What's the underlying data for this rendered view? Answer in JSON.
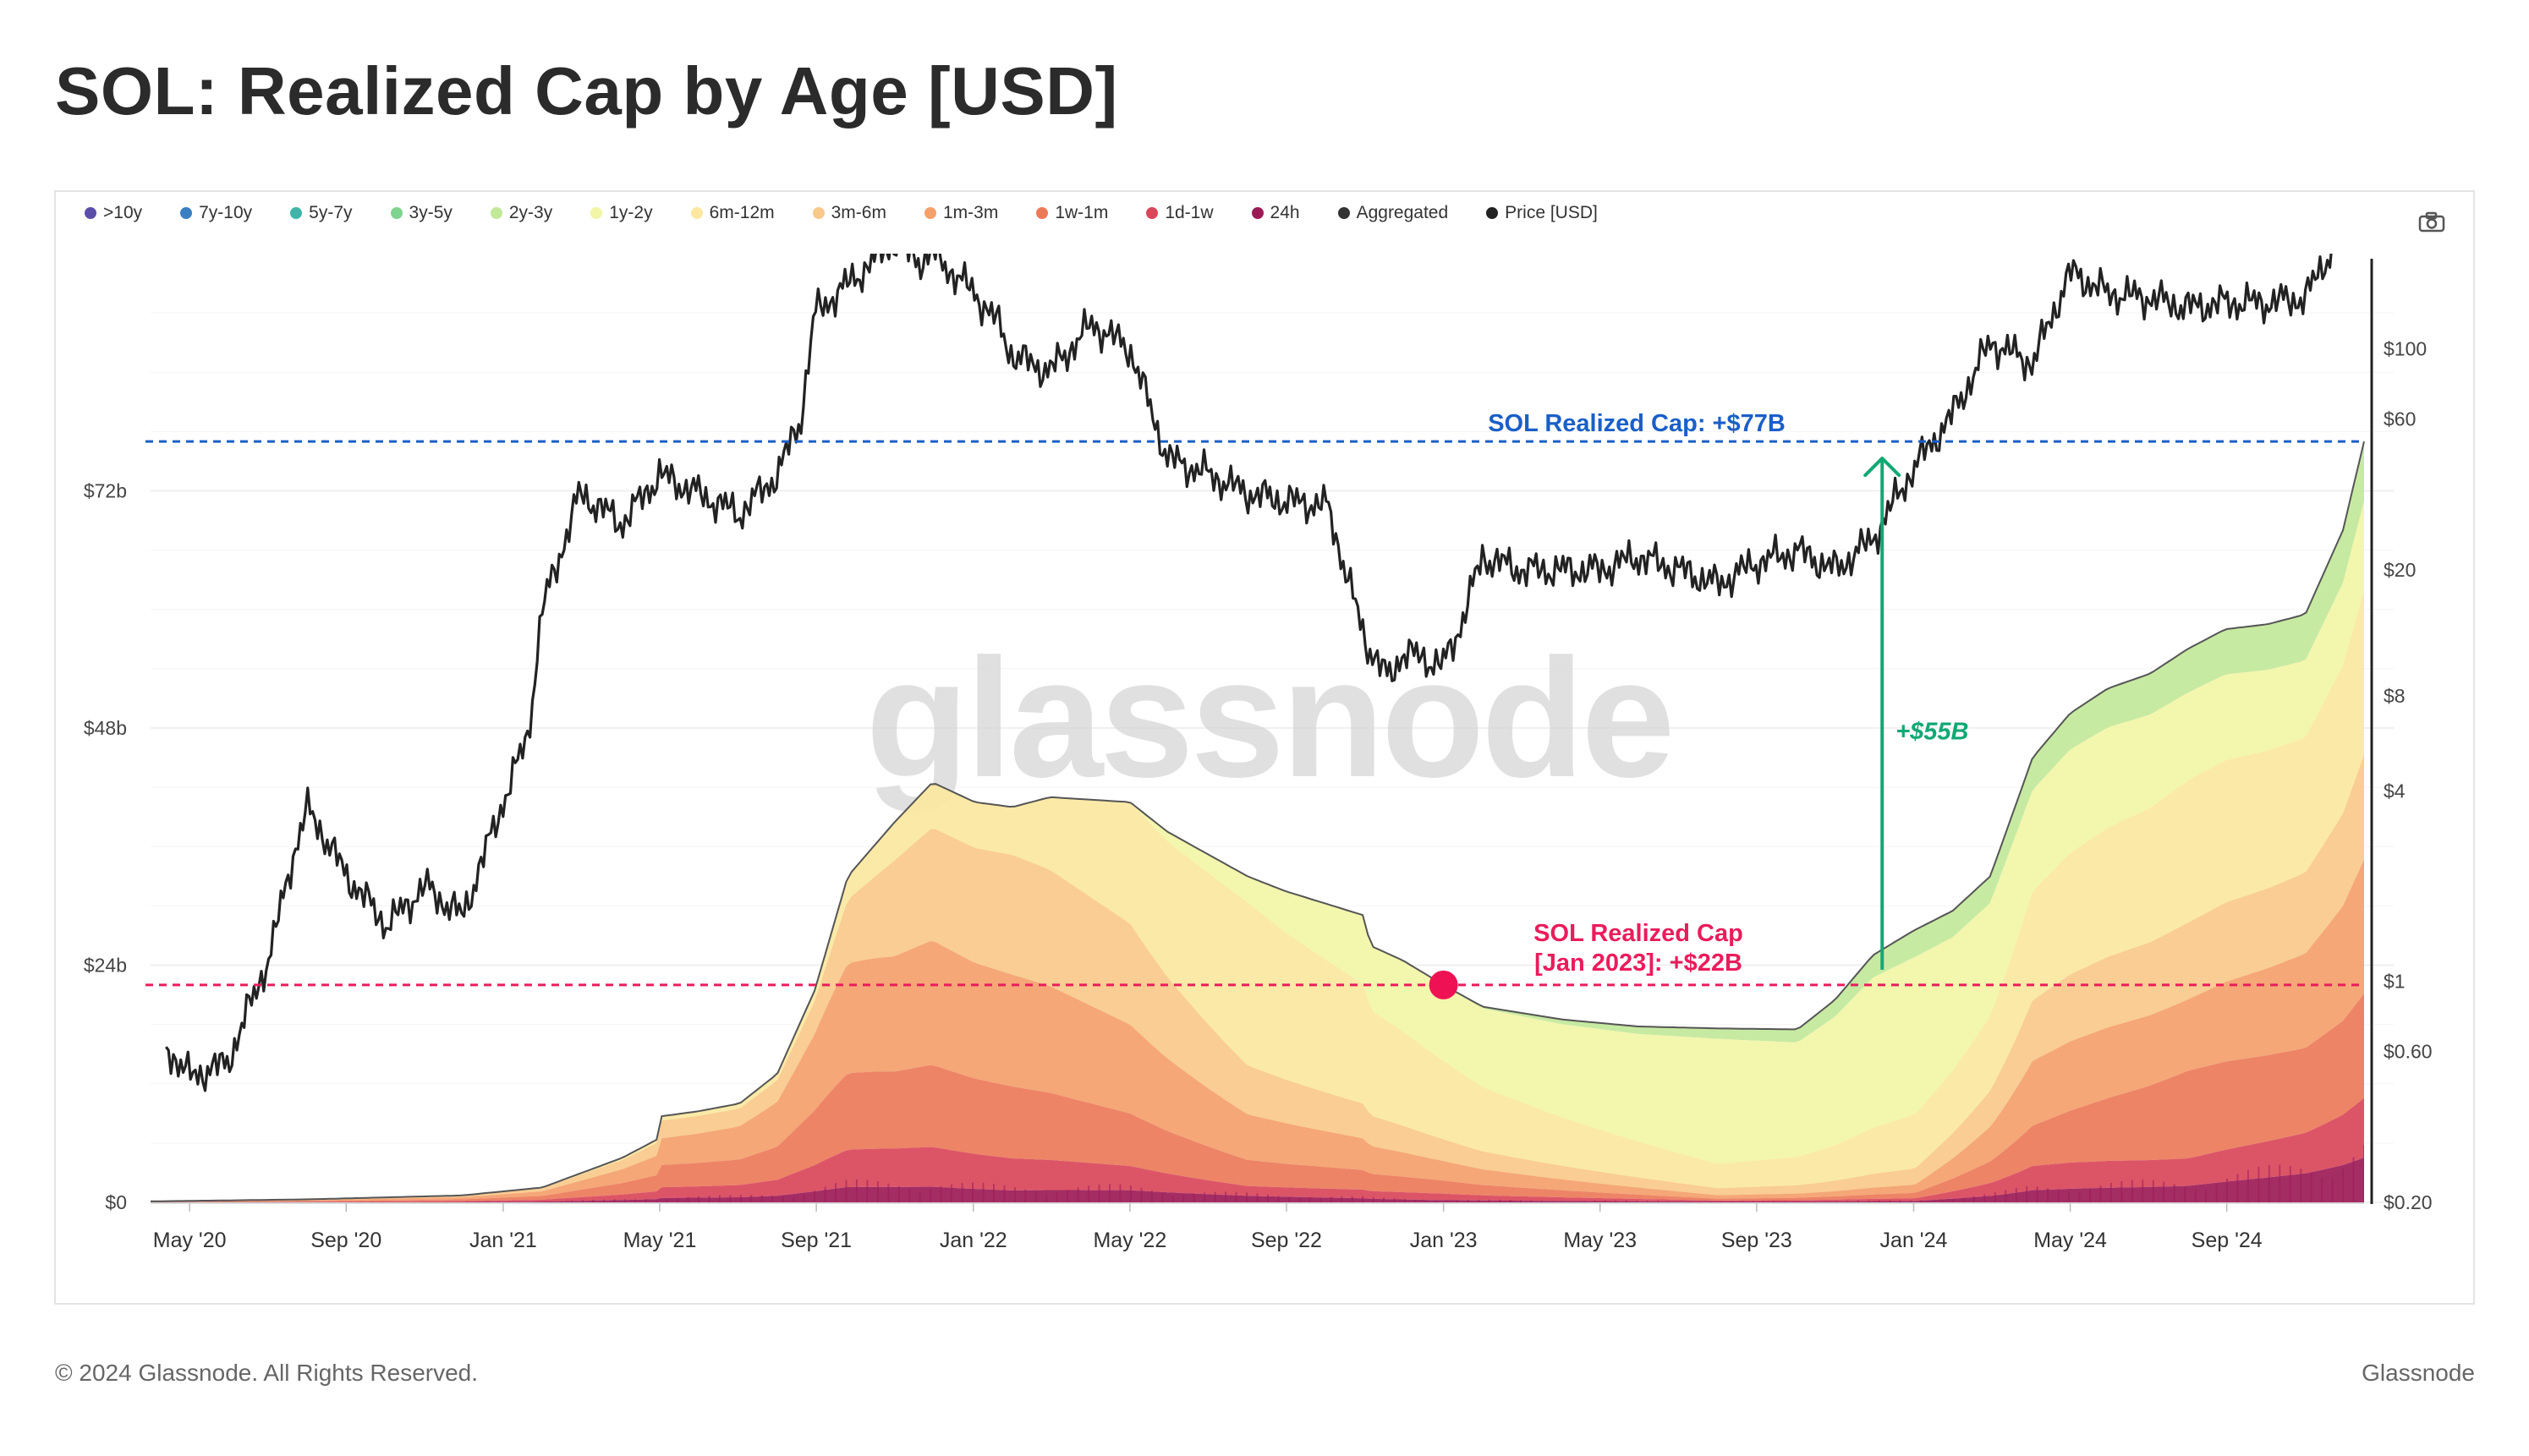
{
  "page": {
    "title": "SOL: Realized Cap by Age [USD]",
    "footer_left": "© 2024 Glassnode. All Rights Reserved.",
    "footer_right": "Glassnode",
    "watermark": "glassnode"
  },
  "legend": [
    {
      "label": ">10y",
      "color": "#5b4ea8"
    },
    {
      "label": "7y-10y",
      "color": "#3a7fc1"
    },
    {
      "label": "5y-7y",
      "color": "#3fb5a8"
    },
    {
      "label": "3y-5y",
      "color": "#7fd38f"
    },
    {
      "label": "2y-3y",
      "color": "#c2e89a"
    },
    {
      "label": "1y-2y",
      "color": "#f2f5a6"
    },
    {
      "label": "6m-12m",
      "color": "#fbe7a0"
    },
    {
      "label": "3m-6m",
      "color": "#f9c98a"
    },
    {
      "label": "1m-3m",
      "color": "#f4a06b"
    },
    {
      "label": "1w-1m",
      "color": "#ec7a59"
    },
    {
      "label": "1d-1w",
      "color": "#d9475a"
    },
    {
      "label": "24h",
      "color": "#9c1b57"
    },
    {
      "label": "Aggregated",
      "color": "#333333"
    },
    {
      "label": "Price [USD]",
      "color": "#222222"
    }
  ],
  "chart_data": {
    "type": "area",
    "title": "SOL: Realized Cap by Age [USD]",
    "x_tick_labels": [
      "May '20",
      "Sep '20",
      "Jan '21",
      "May '21",
      "Sep '21",
      "Jan '22",
      "May '22",
      "Sep '22",
      "Jan '23",
      "May '23",
      "Sep '23",
      "Jan '24",
      "May '24",
      "Sep '24"
    ],
    "x_tick_t": [
      0.25,
      0.583,
      0.917,
      1.25,
      1.583,
      1.917,
      2.25,
      2.583,
      2.917,
      3.25,
      3.583,
      3.917,
      4.25,
      4.583
    ],
    "x_range_t": [
      0.167,
      4.875
    ],
    "y_left": {
      "ticks": [
        0,
        24,
        48,
        72
      ],
      "tick_labels": [
        "$0",
        "$24b",
        "$48b",
        "$72b"
      ],
      "range": [
        0,
        96
      ],
      "unit": "USD billions"
    },
    "y_right": {
      "scale": "log",
      "ticks": [
        0.2,
        0.6,
        1,
        4,
        8,
        20,
        60,
        100
      ],
      "tick_labels": [
        "$0.20",
        "$0.60",
        "$1",
        "$4",
        "$8",
        "$20",
        "$60",
        "$100"
      ],
      "range": [
        0.2,
        200
      ]
    },
    "aggregated_realized_cap_billion": {
      "t": [
        0.167,
        0.5,
        0.83,
        1.0,
        1.17,
        1.25,
        1.252,
        1.33,
        1.42,
        1.5,
        1.58,
        1.65,
        1.75,
        1.83,
        1.92,
        2.0,
        2.08,
        2.25,
        2.33,
        2.5,
        2.58,
        2.75,
        2.76,
        2.83,
        2.917,
        3.0,
        3.17,
        3.33,
        3.5,
        3.67,
        3.75,
        3.83,
        3.917,
        4.0,
        4.08,
        4.17,
        4.25,
        4.33,
        4.42,
        4.5,
        4.58,
        4.67,
        4.75,
        4.83,
        4.875
      ],
      "values": [
        0.1,
        0.3,
        0.7,
        1.5,
        4.5,
        6.5,
        8.7,
        9.2,
        10.0,
        13.0,
        21.5,
        33.0,
        38.5,
        42.5,
        40.5,
        40.0,
        41.0,
        40.5,
        37.5,
        33.0,
        31.5,
        29.0,
        26.0,
        24.5,
        22.0,
        19.8,
        18.5,
        17.8,
        17.6,
        17.5,
        20.5,
        25.0,
        27.5,
        29.5,
        33.0,
        45.0,
        49.5,
        52.0,
        53.5,
        56.0,
        58.0,
        58.5,
        59.5,
        68.0,
        77.0
      ]
    },
    "age_band_share_of_aggregate": {
      "t": [
        0.167,
        1.25,
        1.58,
        1.75,
        2.0,
        2.25,
        2.5,
        2.917,
        3.5,
        3.92,
        4.17,
        4.5,
        4.875
      ],
      "2y-3y": [
        0,
        0,
        0,
        0,
        0,
        0,
        0,
        0,
        0.06,
        0.1,
        0.08,
        0.08,
        0.08
      ],
      "1y-2y": [
        0,
        0,
        0,
        0,
        0,
        0,
        0.08,
        0.35,
        0.72,
        0.58,
        0.25,
        0.16,
        0.12
      ],
      "6m-12m": [
        0.05,
        0.05,
        0.05,
        0.1,
        0.12,
        0.3,
        0.5,
        0.36,
        0.14,
        0.2,
        0.27,
        0.26,
        0.22
      ],
      "3m-6m": [
        0.2,
        0.2,
        0.15,
        0.25,
        0.3,
        0.25,
        0.15,
        0.1,
        0.04,
        0.06,
        0.15,
        0.14,
        0.14
      ],
      "1m-3m": [
        0.3,
        0.3,
        0.35,
        0.3,
        0.28,
        0.22,
        0.14,
        0.09,
        0.02,
        0.03,
        0.16,
        0.13,
        0.18
      ],
      "1w-1m": [
        0.25,
        0.25,
        0.25,
        0.2,
        0.18,
        0.13,
        0.08,
        0.06,
        0.01,
        0.02,
        0.1,
        0.16,
        0.14
      ],
      "1d-1w": [
        0.12,
        0.12,
        0.12,
        0.1,
        0.08,
        0.06,
        0.03,
        0.03,
        0.006,
        0.01,
        0.06,
        0.05,
        0.08
      ],
      "24h": [
        0.05,
        0.05,
        0.05,
        0.04,
        0.03,
        0.03,
        0.02,
        0.01,
        0.005,
        0.005,
        0.03,
        0.03,
        0.06
      ]
    },
    "price_usd": {
      "t": [
        0.2,
        0.25,
        0.33,
        0.42,
        0.47,
        0.5,
        0.53,
        0.58,
        0.67,
        0.75,
        0.83,
        0.92,
        0.97,
        1.0,
        1.08,
        1.17,
        1.25,
        1.33,
        1.42,
        1.5,
        1.55,
        1.58,
        1.67,
        1.75,
        1.8,
        1.83,
        1.92,
        1.97,
        2.0,
        2.08,
        2.17,
        2.25,
        2.33,
        2.42,
        2.5,
        2.58,
        2.67,
        2.75,
        2.8,
        2.83,
        2.917,
        2.95,
        3.0,
        3.08,
        3.17,
        3.25,
        3.33,
        3.42,
        3.5,
        3.58,
        3.67,
        3.75,
        3.83,
        3.917,
        4.0,
        4.08,
        4.17,
        4.25,
        4.33,
        4.42,
        4.5,
        4.58,
        4.67,
        4.75,
        4.83,
        4.875
      ],
      "values": [
        0.62,
        0.5,
        0.55,
        1.2,
        2.5,
        3.5,
        3.0,
        2.2,
        1.5,
        2.0,
        1.6,
        3.8,
        6.0,
        15.0,
        35.0,
        28.0,
        40.0,
        35.0,
        30.0,
        40.0,
        60.0,
        130.0,
        170.0,
        220.0,
        190.0,
        200.0,
        150.0,
        120.0,
        95.0,
        85.0,
        120.0,
        100.0,
        45.0,
        40.0,
        35.0,
        33.0,
        32.0,
        12.0,
        9.0,
        11.0,
        10.0,
        13.0,
        22.0,
        20.0,
        20.0,
        20.0,
        22.0,
        20.0,
        18.0,
        21.0,
        23.0,
        20.0,
        25.0,
        42.0,
        62.0,
        105.0,
        90.0,
        175.0,
        150.0,
        145.0,
        135.0,
        140.0,
        140.0,
        145.0,
        240.0,
        220.0
      ]
    },
    "reference_lines": [
      {
        "label": "SOL Realized Cap: +$77B",
        "value_billion": 77,
        "color": "#1a5fc8",
        "style": "dashed"
      },
      {
        "label": "SOL Realized Cap",
        "label2": "[Jan 2023]: +$22B",
        "value_billion": 22,
        "color": "#ea1c5c",
        "style": "dashed",
        "marker_t": 2.917
      }
    ],
    "annotation_arrow": {
      "label": "+$55B",
      "t": 3.85,
      "from_billion": 22,
      "to_billion": 77,
      "color": "#12a874"
    }
  }
}
